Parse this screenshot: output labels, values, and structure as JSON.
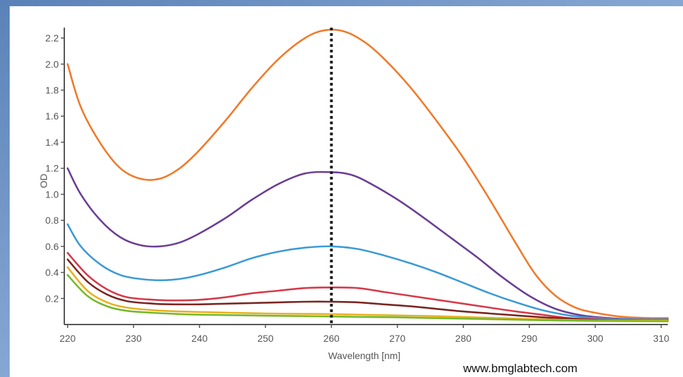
{
  "chart_data": {
    "type": "line",
    "xlabel": "Wavelength [nm]",
    "ylabel": "OD",
    "xlim": [
      219.5,
      311
    ],
    "ylim": [
      0,
      2.28
    ],
    "x_ticks": [
      220,
      230,
      240,
      250,
      260,
      270,
      280,
      290,
      300,
      310
    ],
    "y_ticks": [
      0.2,
      0.4,
      0.6,
      0.8,
      1.0,
      1.2,
      1.4,
      1.6,
      1.8,
      2.0,
      2.2
    ],
    "y_tick_labels": [
      "0.2",
      "0.4",
      "0.6",
      "0.8",
      "1.0",
      "1.2",
      "1.4",
      "1.6",
      "1.8",
      "2.0",
      "2.2"
    ],
    "grid": false,
    "reference_line": {
      "x": 260,
      "style": "dotted",
      "color": "#1a1a1a"
    },
    "series": [
      {
        "color": "#f07a2a",
        "points": [
          [
            220,
            2.0
          ],
          [
            222,
            1.67
          ],
          [
            225,
            1.39
          ],
          [
            228,
            1.2
          ],
          [
            231,
            1.12
          ],
          [
            234,
            1.12
          ],
          [
            237,
            1.2
          ],
          [
            240,
            1.34
          ],
          [
            244,
            1.57
          ],
          [
            248,
            1.82
          ],
          [
            252,
            2.04
          ],
          [
            256,
            2.2
          ],
          [
            259,
            2.26
          ],
          [
            262,
            2.25
          ],
          [
            265,
            2.17
          ],
          [
            268,
            2.04
          ],
          [
            272,
            1.82
          ],
          [
            276,
            1.56
          ],
          [
            280,
            1.28
          ],
          [
            284,
            0.96
          ],
          [
            288,
            0.62
          ],
          [
            291,
            0.38
          ],
          [
            294,
            0.22
          ],
          [
            297,
            0.13
          ],
          [
            300,
            0.09
          ],
          [
            304,
            0.06
          ],
          [
            308,
            0.05
          ],
          [
            311,
            0.05
          ]
        ]
      },
      {
        "color": "#6a3f93",
        "points": [
          [
            220,
            1.2
          ],
          [
            222,
            1.0
          ],
          [
            225,
            0.8
          ],
          [
            228,
            0.67
          ],
          [
            231,
            0.61
          ],
          [
            234,
            0.6
          ],
          [
            237,
            0.63
          ],
          [
            240,
            0.7
          ],
          [
            244,
            0.82
          ],
          [
            248,
            0.96
          ],
          [
            252,
            1.08
          ],
          [
            256,
            1.16
          ],
          [
            260,
            1.17
          ],
          [
            263,
            1.15
          ],
          [
            266,
            1.08
          ],
          [
            270,
            0.96
          ],
          [
            274,
            0.82
          ],
          [
            278,
            0.67
          ],
          [
            282,
            0.52
          ],
          [
            286,
            0.36
          ],
          [
            290,
            0.22
          ],
          [
            294,
            0.12
          ],
          [
            298,
            0.07
          ],
          [
            302,
            0.05
          ],
          [
            306,
            0.04
          ],
          [
            311,
            0.04
          ]
        ]
      },
      {
        "color": "#3c9ad6",
        "points": [
          [
            220,
            0.77
          ],
          [
            222,
            0.6
          ],
          [
            225,
            0.46
          ],
          [
            228,
            0.38
          ],
          [
            231,
            0.35
          ],
          [
            234,
            0.34
          ],
          [
            237,
            0.35
          ],
          [
            240,
            0.38
          ],
          [
            244,
            0.44
          ],
          [
            248,
            0.51
          ],
          [
            252,
            0.56
          ],
          [
            256,
            0.59
          ],
          [
            260,
            0.6
          ],
          [
            264,
            0.58
          ],
          [
            268,
            0.53
          ],
          [
            272,
            0.47
          ],
          [
            276,
            0.4
          ],
          [
            280,
            0.32
          ],
          [
            284,
            0.24
          ],
          [
            288,
            0.17
          ],
          [
            292,
            0.11
          ],
          [
            296,
            0.07
          ],
          [
            300,
            0.05
          ],
          [
            305,
            0.04
          ],
          [
            311,
            0.04
          ]
        ]
      },
      {
        "color": "#d43a4a",
        "points": [
          [
            220,
            0.55
          ],
          [
            223,
            0.38
          ],
          [
            226,
            0.27
          ],
          [
            229,
            0.21
          ],
          [
            233,
            0.19
          ],
          [
            236,
            0.185
          ],
          [
            240,
            0.19
          ],
          [
            244,
            0.21
          ],
          [
            248,
            0.24
          ],
          [
            252,
            0.26
          ],
          [
            256,
            0.28
          ],
          [
            260,
            0.285
          ],
          [
            264,
            0.28
          ],
          [
            268,
            0.25
          ],
          [
            272,
            0.22
          ],
          [
            276,
            0.19
          ],
          [
            280,
            0.16
          ],
          [
            284,
            0.13
          ],
          [
            288,
            0.1
          ],
          [
            292,
            0.075
          ],
          [
            296,
            0.05
          ],
          [
            300,
            0.04
          ],
          [
            305,
            0.035
          ],
          [
            311,
            0.035
          ]
        ]
      },
      {
        "color": "#7a2520",
        "points": [
          [
            220,
            0.5
          ],
          [
            223,
            0.33
          ],
          [
            226,
            0.23
          ],
          [
            229,
            0.18
          ],
          [
            233,
            0.16
          ],
          [
            236,
            0.155
          ],
          [
            240,
            0.155
          ],
          [
            244,
            0.16
          ],
          [
            248,
            0.165
          ],
          [
            252,
            0.17
          ],
          [
            256,
            0.175
          ],
          [
            260,
            0.175
          ],
          [
            264,
            0.17
          ],
          [
            268,
            0.155
          ],
          [
            272,
            0.14
          ],
          [
            276,
            0.12
          ],
          [
            280,
            0.1
          ],
          [
            284,
            0.085
          ],
          [
            288,
            0.07
          ],
          [
            292,
            0.055
          ],
          [
            296,
            0.045
          ],
          [
            300,
            0.035
          ],
          [
            305,
            0.03
          ],
          [
            311,
            0.03
          ]
        ]
      },
      {
        "color": "#e8b020",
        "points": [
          [
            220,
            0.44
          ],
          [
            223,
            0.26
          ],
          [
            226,
            0.17
          ],
          [
            229,
            0.13
          ],
          [
            233,
            0.11
          ],
          [
            237,
            0.1
          ],
          [
            241,
            0.095
          ],
          [
            245,
            0.09
          ],
          [
            250,
            0.085
          ],
          [
            255,
            0.082
          ],
          [
            260,
            0.08
          ],
          [
            265,
            0.075
          ],
          [
            270,
            0.07
          ],
          [
            275,
            0.065
          ],
          [
            280,
            0.058
          ],
          [
            285,
            0.05
          ],
          [
            290,
            0.042
          ],
          [
            295,
            0.036
          ],
          [
            300,
            0.032
          ],
          [
            305,
            0.03
          ],
          [
            311,
            0.03
          ]
        ]
      },
      {
        "color": "#76b82a",
        "points": [
          [
            220,
            0.38
          ],
          [
            223,
            0.22
          ],
          [
            226,
            0.14
          ],
          [
            229,
            0.105
          ],
          [
            233,
            0.09
          ],
          [
            237,
            0.08
          ],
          [
            241,
            0.075
          ],
          [
            245,
            0.072
          ],
          [
            250,
            0.068
          ],
          [
            255,
            0.065
          ],
          [
            260,
            0.062
          ],
          [
            265,
            0.058
          ],
          [
            270,
            0.055
          ],
          [
            275,
            0.05
          ],
          [
            280,
            0.045
          ],
          [
            285,
            0.04
          ],
          [
            290,
            0.035
          ],
          [
            295,
            0.031
          ],
          [
            300,
            0.028
          ],
          [
            305,
            0.026
          ],
          [
            311,
            0.025
          ]
        ]
      }
    ]
  },
  "credit_text": "www.bmglabtech.com"
}
